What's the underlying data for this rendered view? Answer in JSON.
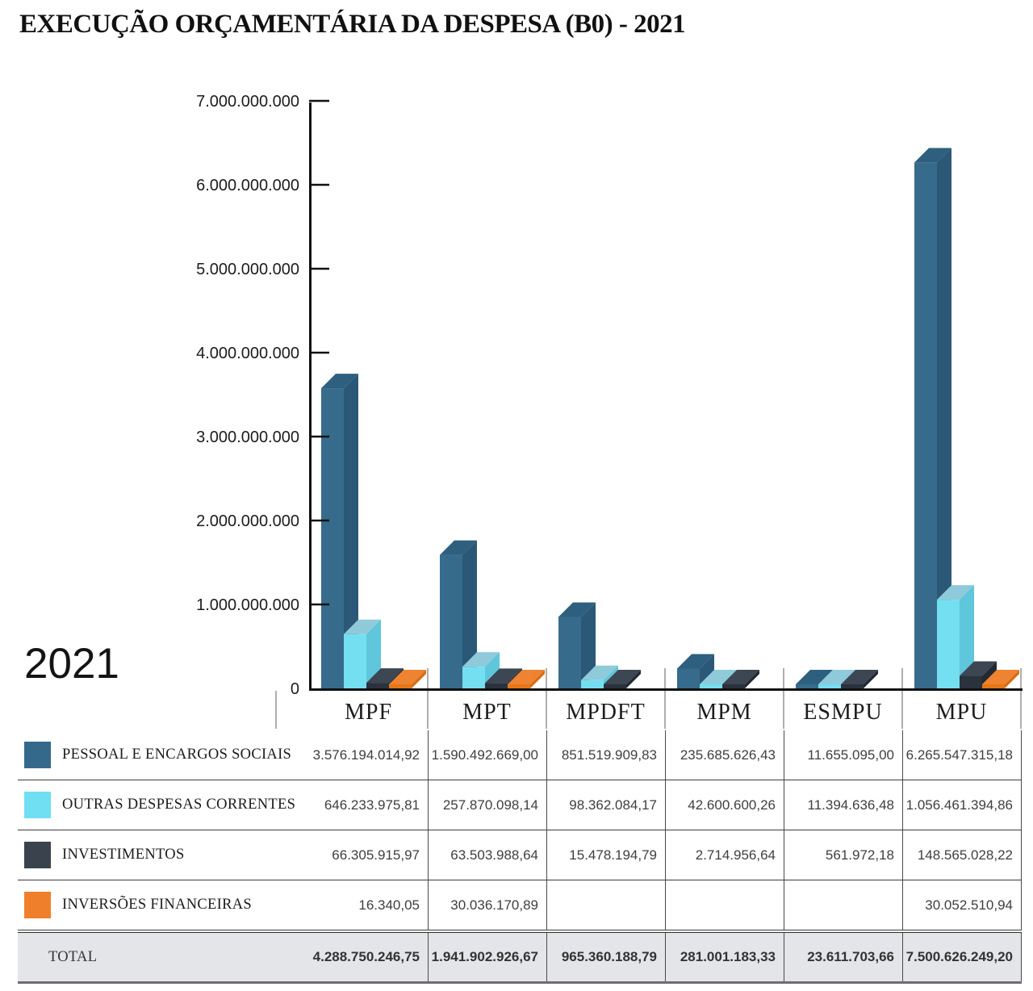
{
  "title": "EXECUÇÃO ORÇAMENTÁRIA DA DESPESA (B0) - 2021",
  "year_label": "2021",
  "colors": {
    "axis": "#111111",
    "separator": "#999999",
    "total_row_bg": "#E4E5E8",
    "series": [
      {
        "front": "#376B8C",
        "top": "#2E5F7F",
        "side": "#2B5876",
        "legend": "#35698C"
      },
      {
        "front": "#74DFF1",
        "top": "#8FCADA",
        "side": "#5FC6DB",
        "legend": "#70DFF2"
      },
      {
        "front": "#2A323D",
        "top": "#3D4653",
        "side": "#232931",
        "legend": "#3A424E"
      },
      {
        "front": "#E87617",
        "top": "#EE8331",
        "side": "#D96C12",
        "legend": "#EF7F2B"
      }
    ]
  },
  "chart_data": {
    "type": "bar",
    "title": "EXECUÇÃO ORÇAMENTÁRIA DA DESPESA (B0) - 2021",
    "categories": [
      "MPF",
      "MPT",
      "MPDFT",
      "MPM",
      "ESMPU",
      "MPU"
    ],
    "series": [
      {
        "name": "PESSOAL E ENCARGOS SOCIAIS",
        "values": [
          3576194014.92,
          1590492669.0,
          851519909.83,
          235685626.43,
          11655095.0,
          6265547315.18
        ]
      },
      {
        "name": "OUTRAS DESPESAS CORRENTES",
        "values": [
          646233975.81,
          257870098.14,
          98362084.17,
          42600600.26,
          11394636.48,
          1056461394.86
        ]
      },
      {
        "name": "INVESTIMENTOS",
        "values": [
          66305915.97,
          63503988.64,
          15478194.79,
          2714956.64,
          561972.18,
          148565028.22
        ]
      },
      {
        "name": "INVERSÕES FINANCEIRAS",
        "values": [
          16340.05,
          30036170.89,
          null,
          null,
          null,
          30052510.94
        ]
      }
    ],
    "xlabel": "",
    "ylabel": "",
    "ylim": [
      0,
      7000000000
    ],
    "grid": false,
    "style": "3d-bars",
    "legend_position": "table-rows-below",
    "y_ticks": [
      "0",
      "1.000.000.000",
      "2.000.000.000",
      "3.000.000.000",
      "4.000.000.000",
      "5.000.000.000",
      "6.000.000.000",
      "7.000.000.000"
    ]
  },
  "table": {
    "rows": [
      {
        "label": "PESSOAL E ENCARGOS SOCIAIS",
        "values": [
          "3.576.194.014,92",
          "1.590.492.669,00",
          "851.519.909,83",
          "235.685.626,43",
          "11.655.095,00",
          "6.265.547.315,18"
        ]
      },
      {
        "label": "OUTRAS DESPESAS CORRENTES",
        "values": [
          "646.233.975,81",
          "257.870.098,14",
          "98.362.084,17",
          "42.600.600,26",
          "11.394.636,48",
          "1.056.461.394,86"
        ]
      },
      {
        "label": "INVESTIMENTOS",
        "values": [
          "66.305.915,97",
          "63.503.988,64",
          "15.478.194,79",
          "2.714.956,64",
          "561.972,18",
          "148.565.028,22"
        ]
      },
      {
        "label": "INVERSÕES FINANCEIRAS",
        "values": [
          "16.340,05",
          "30.036.170,89",
          "",
          "",
          "",
          "30.052.510,94"
        ]
      }
    ],
    "total": {
      "label": "TOTAL",
      "values": [
        "4.288.750.246,75",
        "1.941.902.926,67",
        "965.360.188,79",
        "281.001.183,33",
        "23.611.703,66",
        "7.500.626.249,20"
      ]
    }
  }
}
